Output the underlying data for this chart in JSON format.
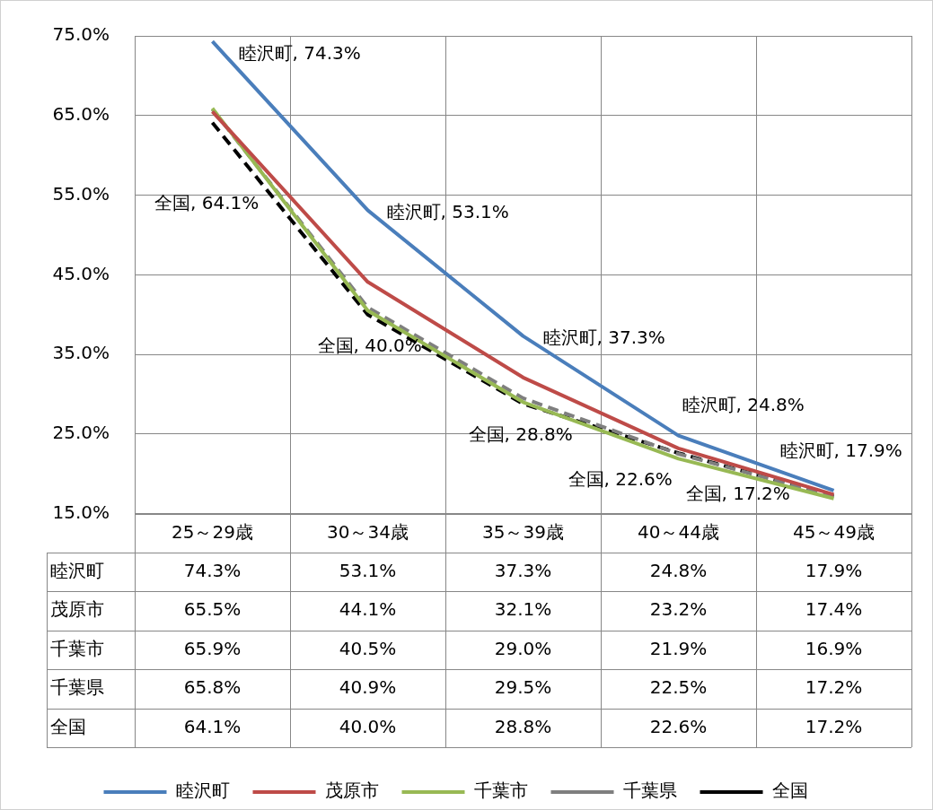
{
  "chart_data": {
    "type": "line",
    "categories": [
      "25～29歳",
      "30～34歳",
      "35～39歳",
      "40～44歳",
      "45～49歳"
    ],
    "series": [
      {
        "name": "睦沢町",
        "color": "#4a7ebb",
        "values": [
          74.3,
          53.1,
          37.3,
          24.8,
          17.9
        ],
        "value_labels": [
          "74.3%",
          "53.1%",
          "37.3%",
          "24.8%",
          "17.9%"
        ]
      },
      {
        "name": "茂原市",
        "color": "#be4b48",
        "values": [
          65.5,
          44.1,
          32.1,
          23.2,
          17.4
        ],
        "value_labels": [
          "65.5%",
          "44.1%",
          "32.1%",
          "23.2%",
          "17.4%"
        ]
      },
      {
        "name": "千葉市",
        "color": "#98b954",
        "values": [
          65.9,
          40.5,
          29.0,
          21.9,
          16.9
        ],
        "value_labels": [
          "65.9%",
          "40.5%",
          "29.0%",
          "21.9%",
          "16.9%"
        ]
      },
      {
        "name": "千葉県",
        "color": "#7f7f7f",
        "line_style": "dashed",
        "values": [
          65.8,
          40.9,
          29.5,
          22.5,
          17.2
        ],
        "value_labels": [
          "65.8%",
          "40.9%",
          "29.5%",
          "22.5%",
          "17.2%"
        ]
      },
      {
        "name": "全国",
        "color": "#000000",
        "line_style": "dashed",
        "values": [
          64.1,
          40.0,
          28.8,
          22.6,
          17.2
        ],
        "value_labels": [
          "64.1%",
          "40.0%",
          "28.8%",
          "22.6%",
          "17.2%"
        ]
      }
    ],
    "ylim": [
      15,
      75
    ],
    "yticks": [
      {
        "value": 15,
        "label": "15.0%"
      },
      {
        "value": 25,
        "label": "25.0%"
      },
      {
        "value": 35,
        "label": "35.0%"
      },
      {
        "value": 45,
        "label": "45.0%"
      },
      {
        "value": 55,
        "label": "55.0%"
      },
      {
        "value": 65,
        "label": "65.0%"
      },
      {
        "value": 75,
        "label": "75.0%"
      }
    ],
    "grid": true,
    "legend": "bottom",
    "marker": "none",
    "line_style": "solid",
    "annotations": [
      {
        "text": "睦沢町, 74.3%",
        "x": "25～29歳",
        "y": 74.3
      },
      {
        "text": "睦沢町, 53.1%",
        "x": "30～34歳",
        "y": 53.1
      },
      {
        "text": "睦沢町, 37.3%",
        "x": "35～39歳",
        "y": 37.3
      },
      {
        "text": "睦沢町, 24.8%",
        "x": "40～44歳",
        "y": 24.8
      },
      {
        "text": "睦沢町, 17.9%",
        "x": "45～49歳",
        "y": 17.9
      },
      "全国, 64.1%",
      {
        "text": "全国, 40.0%",
        "x": "30～34歳",
        "y": 40.0
      },
      {
        "text": "全国, 28.8%",
        "x": "35～39歳",
        "y": 28.8
      },
      {
        "text": "全国, 22.6%",
        "x": "40～44歳",
        "y": 22.6
      },
      {
        "text": "全国, 17.2%",
        "x": "45～49歳",
        "y": 17.2
      }
    ]
  }
}
